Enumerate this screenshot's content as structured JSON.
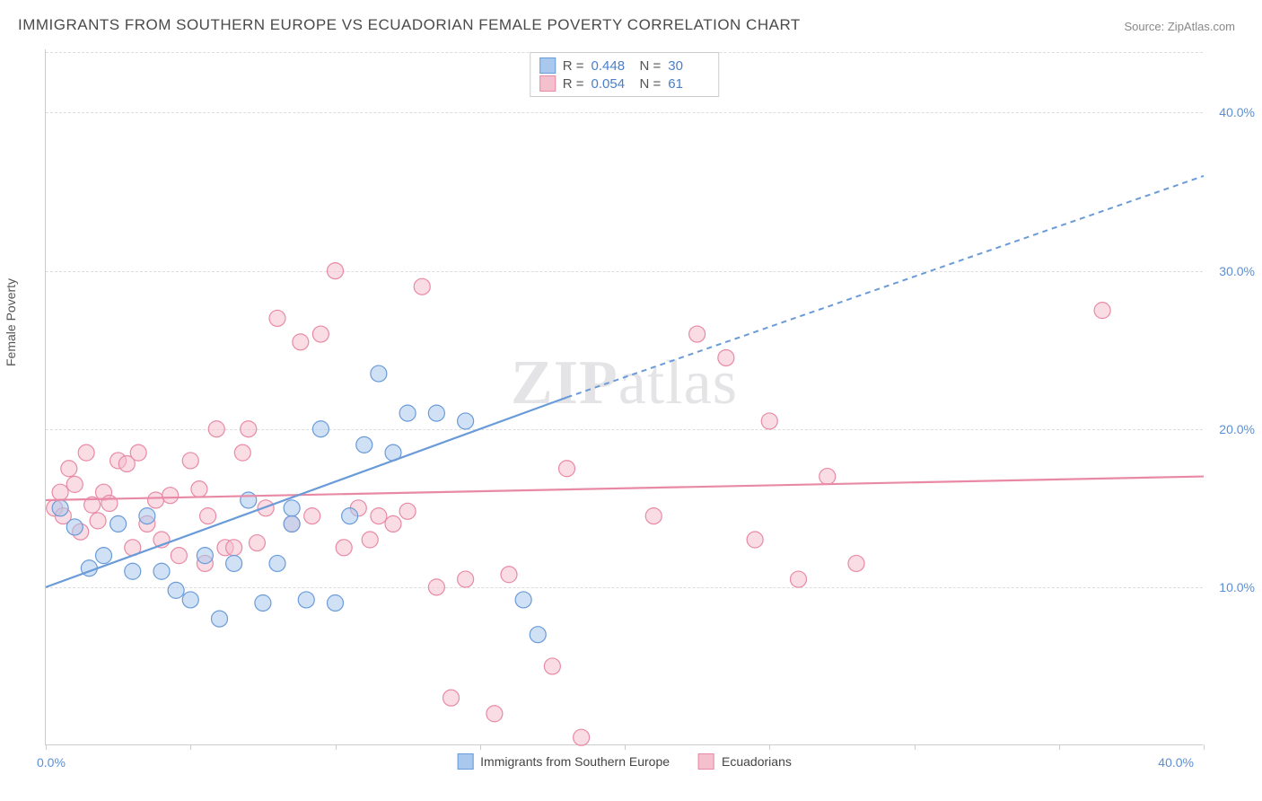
{
  "title": "IMMIGRANTS FROM SOUTHERN EUROPE VS ECUADORIAN FEMALE POVERTY CORRELATION CHART",
  "source": "Source: ZipAtlas.com",
  "ylabel": "Female Poverty",
  "watermark_bold": "ZIP",
  "watermark_light": "atlas",
  "chart": {
    "type": "scatter",
    "xlim": [
      0,
      40
    ],
    "ylim": [
      0,
      44
    ],
    "y_gridlines": [
      10,
      20,
      30,
      40
    ],
    "y_tick_labels": [
      "10.0%",
      "20.0%",
      "30.0%",
      "40.0%"
    ],
    "x_ticks": [
      0,
      5,
      10,
      15,
      20,
      25,
      30,
      35,
      40
    ],
    "x_min_label": "0.0%",
    "x_max_label": "40.0%",
    "grid_color": "#dddddd",
    "axis_color": "#cccccc",
    "background_color": "#ffffff",
    "marker_radius": 9,
    "marker_opacity": 0.55,
    "line_width_solid": 2.2,
    "line_width_dash": 2,
    "dash_pattern": "6,5",
    "label_fontsize": 14,
    "title_fontsize": 17,
    "tick_color": "#5a8fd4",
    "series": [
      {
        "key": "southern_europe",
        "label": "Immigrants from Southern Europe",
        "color_fill": "#a9c8ed",
        "color_stroke": "#6a9bd8",
        "R": "0.448",
        "N": "30",
        "trend_solid": {
          "x1": 0,
          "y1": 10,
          "x2": 18,
          "y2": 22
        },
        "trend_dash": {
          "x1": 18,
          "y1": 22,
          "x2": 40,
          "y2": 36
        },
        "points": [
          [
            0.5,
            15.0
          ],
          [
            1.0,
            13.8
          ],
          [
            1.5,
            11.2
          ],
          [
            2.0,
            12.0
          ],
          [
            2.5,
            14.0
          ],
          [
            3.0,
            11.0
          ],
          [
            3.5,
            14.5
          ],
          [
            4.0,
            11.0
          ],
          [
            4.5,
            9.8
          ],
          [
            5.0,
            9.2
          ],
          [
            5.5,
            12.0
          ],
          [
            6.0,
            8.0
          ],
          [
            6.5,
            11.5
          ],
          [
            7.0,
            15.5
          ],
          [
            7.5,
            9.0
          ],
          [
            8.0,
            11.5
          ],
          [
            8.5,
            14.0
          ],
          [
            9.0,
            9.2
          ],
          [
            9.5,
            20.0
          ],
          [
            10.0,
            9.0
          ],
          [
            10.5,
            14.5
          ],
          [
            11.0,
            19.0
          ],
          [
            11.5,
            23.5
          ],
          [
            12.0,
            18.5
          ],
          [
            12.5,
            21.0
          ],
          [
            13.5,
            21.0
          ],
          [
            14.5,
            20.5
          ],
          [
            16.5,
            9.2
          ],
          [
            17.0,
            7.0
          ],
          [
            8.5,
            15.0
          ]
        ]
      },
      {
        "key": "ecuadorians",
        "label": "Ecuadorians",
        "color_fill": "#f4c0ce",
        "color_stroke": "#e88aa5",
        "R": "0.054",
        "N": "61",
        "trend_solid": {
          "x1": 0,
          "y1": 15.5,
          "x2": 40,
          "y2": 17.0
        },
        "trend_dash": null,
        "points": [
          [
            0.3,
            15.0
          ],
          [
            0.5,
            16.0
          ],
          [
            0.6,
            14.5
          ],
          [
            0.8,
            17.5
          ],
          [
            1.0,
            16.5
          ],
          [
            1.2,
            13.5
          ],
          [
            1.4,
            18.5
          ],
          [
            1.6,
            15.2
          ],
          [
            1.8,
            14.2
          ],
          [
            2.0,
            16.0
          ],
          [
            2.2,
            15.3
          ],
          [
            2.5,
            18.0
          ],
          [
            2.8,
            17.8
          ],
          [
            3.0,
            12.5
          ],
          [
            3.2,
            18.5
          ],
          [
            3.5,
            14.0
          ],
          [
            3.8,
            15.5
          ],
          [
            4.0,
            13.0
          ],
          [
            4.3,
            15.8
          ],
          [
            4.6,
            12.0
          ],
          [
            5.0,
            18.0
          ],
          [
            5.3,
            16.2
          ],
          [
            5.6,
            14.5
          ],
          [
            5.9,
            20.0
          ],
          [
            6.2,
            12.5
          ],
          [
            6.5,
            12.5
          ],
          [
            6.8,
            18.5
          ],
          [
            7.0,
            20.0
          ],
          [
            7.3,
            12.8
          ],
          [
            7.6,
            15.0
          ],
          [
            8.0,
            27.0
          ],
          [
            8.5,
            14.0
          ],
          [
            8.8,
            25.5
          ],
          [
            9.2,
            14.5
          ],
          [
            9.5,
            26.0
          ],
          [
            10.0,
            30.0
          ],
          [
            10.3,
            12.5
          ],
          [
            10.8,
            15.0
          ],
          [
            11.2,
            13.0
          ],
          [
            11.5,
            14.5
          ],
          [
            12.0,
            14.0
          ],
          [
            12.5,
            14.8
          ],
          [
            13.0,
            29.0
          ],
          [
            13.5,
            10.0
          ],
          [
            14.0,
            3.0
          ],
          [
            14.5,
            10.5
          ],
          [
            15.5,
            2.0
          ],
          [
            16.0,
            10.8
          ],
          [
            17.5,
            5.0
          ],
          [
            18.0,
            17.5
          ],
          [
            18.5,
            0.5
          ],
          [
            21.0,
            14.5
          ],
          [
            22.5,
            26.0
          ],
          [
            23.5,
            24.5
          ],
          [
            24.5,
            13.0
          ],
          [
            25.0,
            20.5
          ],
          [
            26.0,
            10.5
          ],
          [
            27.0,
            17.0
          ],
          [
            28.0,
            11.5
          ],
          [
            36.5,
            27.5
          ],
          [
            5.5,
            11.5
          ]
        ]
      }
    ]
  }
}
